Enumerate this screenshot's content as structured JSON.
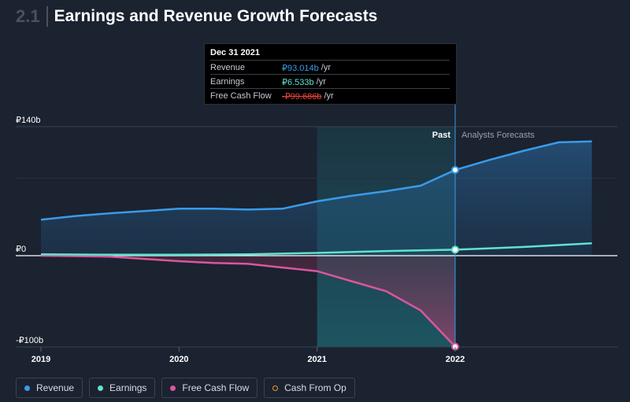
{
  "header": {
    "section_number": "2.1",
    "title": "Earnings and Revenue Growth Forecasts"
  },
  "tooltip": {
    "date": "Dec 31 2021",
    "rows": [
      {
        "label": "Revenue",
        "value": "₽93.014b",
        "unit": "/yr",
        "color": "#3a9be8"
      },
      {
        "label": "Earnings",
        "value": "₽6.533b",
        "unit": "/yr",
        "color": "#5fe3d0"
      },
      {
        "label": "Free Cash Flow",
        "value": "-₽99.686b",
        "unit": "/yr",
        "color": "#e8453a"
      }
    ]
  },
  "legend": [
    {
      "label": "Revenue",
      "color": "#3a9be8",
      "hollow": false
    },
    {
      "label": "Earnings",
      "color": "#5fe3d0",
      "hollow": false
    },
    {
      "label": "Free Cash Flow",
      "color": "#d8579d",
      "hollow": false
    },
    {
      "label": "Cash From Op",
      "color": "#e89a3a",
      "hollow": true
    }
  ],
  "chart_data": {
    "type": "line",
    "y_tick_labels": [
      "₽140b",
      "₽0",
      "-₽100b"
    ],
    "y_ticks": [
      140,
      0,
      -100
    ],
    "ylim": [
      -100,
      140
    ],
    "xlim": [
      2019,
      2022.99
    ],
    "x_ticks": [
      2019,
      2020,
      2021,
      2022
    ],
    "x_tick_labels": [
      "2019",
      "2020",
      "2021",
      "2022"
    ],
    "past_label": "Past",
    "forecast_label": "Analysts Forecasts",
    "divider_x": 2022,
    "highlight_start_x": 2021,
    "grid": true,
    "series": [
      {
        "name": "Revenue",
        "color": "#3a9be8",
        "x": [
          2019,
          2019.25,
          2019.5,
          2019.75,
          2020,
          2020.25,
          2020.5,
          2020.75,
          2021,
          2021.25,
          2021.5,
          2021.75,
          2022,
          2022.25,
          2022.5,
          2022.75,
          2022.99
        ],
        "y": [
          39,
          43,
          46,
          48.5,
          51,
          51,
          50,
          51,
          59,
          65,
          70,
          76,
          93,
          104,
          114,
          123,
          124
        ]
      },
      {
        "name": "Earnings",
        "color": "#5fe3d0",
        "x": [
          2019,
          2019.5,
          2020,
          2020.5,
          2021,
          2021.5,
          2022,
          2022.5,
          2022.99
        ],
        "y": [
          1.5,
          1,
          1,
          1.5,
          3,
          5,
          6.5,
          9.5,
          13.5
        ]
      },
      {
        "name": "Free Cash Flow",
        "color": "#d8579d",
        "x": [
          2019,
          2019.5,
          2020,
          2020.25,
          2020.5,
          2020.75,
          2021,
          2021.25,
          2021.5,
          2021.75,
          2022
        ],
        "y": [
          0,
          -1,
          -6,
          -8,
          -9,
          -13,
          -17,
          -28,
          -39,
          -60,
          -99.686
        ]
      }
    ]
  }
}
